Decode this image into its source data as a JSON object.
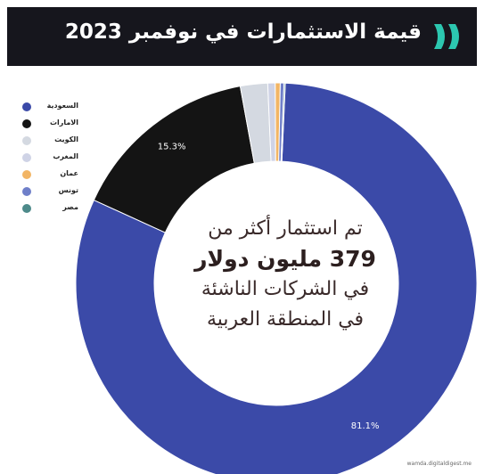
{
  "header": {
    "title": "قيمة الاستثمارات في نوفمبر 2023",
    "logo_icon": "double-chevron-logo-icon",
    "logo_color": "#2cc7b0",
    "background_color": "#16161d"
  },
  "center": {
    "line1": "تم استثمار أكثر من",
    "line2": "379 مليون دولار",
    "line3": "في الشركات الناشئة",
    "line4": "في المنطقة العربية"
  },
  "footer": {
    "source": "wamda.digitaldigest.me"
  },
  "chart_data": {
    "type": "pie",
    "donut": true,
    "title": "قيمة الاستثمارات في نوفمبر 2023",
    "legend_position": "top-left",
    "slices": [
      {
        "name": "السعودية",
        "value": 81.1,
        "color": "#3b4aa8",
        "label": "81.1%"
      },
      {
        "name": "الامارات",
        "value": 15.3,
        "color": "#141414",
        "label": "15.3%"
      },
      {
        "name": "الكويت",
        "value": 2.2,
        "color": "#d4d9e1",
        "label": ""
      },
      {
        "name": "المغرب",
        "value": 0.6,
        "color": "#cfd3e6",
        "label": ""
      },
      {
        "name": "عمان",
        "value": 0.4,
        "color": "#f2b565",
        "label": ""
      },
      {
        "name": "تونس",
        "value": 0.3,
        "color": "#6f7fc9",
        "label": ""
      },
      {
        "name": "مصر",
        "value": 0.1,
        "color": "#4d8a8a",
        "label": ""
      }
    ]
  }
}
